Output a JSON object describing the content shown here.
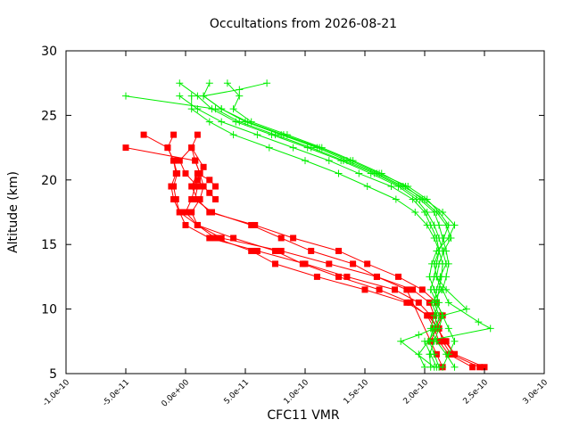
{
  "chart_data": {
    "type": "line",
    "title": "Occultations from 2026-08-21",
    "xlabel": "CFC11 VMR",
    "ylabel": "Altitude (km)",
    "xlim": [
      -1e-10,
      3e-10
    ],
    "ylim": [
      5,
      30
    ],
    "x_ticks": [
      "-1.0e-10",
      "-5.0e-11",
      "0.0e+00",
      "5.0e-11",
      "1.0e-10",
      "1.5e-10",
      "2.0e-10",
      "2.5e-10",
      "3.0e-10"
    ],
    "x_tick_values": [
      -1e-10,
      -5e-11,
      0,
      5e-11,
      1e-10,
      1.5e-10,
      2e-10,
      2.5e-10,
      3e-10
    ],
    "y_ticks": [
      "5",
      "10",
      "15",
      "20",
      "25",
      "30"
    ],
    "y_tick_values": [
      5,
      10,
      15,
      20,
      25,
      30
    ],
    "grid": false,
    "legend": "none",
    "series": [
      {
        "color": "#ff0000",
        "marker": "square",
        "profiles": [
          {
            "x": [
              2.46e-10,
              2.22e-10,
              2.15e-10,
              2.12e-10,
              2.08e-10,
              2.04e-10,
              1.9e-10,
              1.6e-10,
              1.2e-10,
              8e-11,
              3e-11,
              1e-11,
              -5e-12,
              -8e-12,
              -1e-11,
              -7e-12,
              -1e-11,
              -1.5e-11,
              -1e-11
            ],
            "y": [
              5.5,
              6.5,
              7.5,
              8.5,
              9.5,
              10.5,
              11.5,
              12.5,
              13.5,
              14.5,
              15.5,
              16.5,
              17.5,
              18.5,
              19.5,
              20.5,
              21.5,
              22.5,
              23.5
            ]
          },
          {
            "x": [
              2.5e-10,
              2.25e-10,
              2.18e-10,
              2.1e-10,
              2.05e-10,
              1.95e-10,
              1.75e-10,
              1.35e-10,
              1e-10,
              6e-11,
              2e-11,
              0,
              -5e-12,
              -1e-11,
              -1.2e-11,
              -8e-12,
              -1e-11,
              -1.5e-11,
              -3.5e-11
            ],
            "y": [
              5.5,
              6.5,
              7.5,
              8.5,
              9.5,
              10.5,
              11.5,
              12.5,
              13.5,
              14.5,
              15.5,
              16.5,
              17.5,
              18.5,
              19.5,
              20.5,
              21.5,
              22.5,
              23.5
            ]
          },
          {
            "x": [
              2.4e-10,
              2.2e-10,
              2.12e-10,
              2.08e-10,
              2.02e-10,
              1.88e-10,
              1.62e-10,
              1.28e-10,
              9.8e-11,
              7.5e-11,
              4e-11,
              1e-11,
              0,
              5e-12,
              8e-12,
              1.2e-11,
              8e-12,
              5e-12,
              1e-11
            ],
            "y": [
              5.5,
              6.5,
              7.5,
              8.5,
              9.5,
              10.5,
              11.5,
              12.5,
              13.5,
              14.5,
              15.5,
              16.5,
              17.5,
              18.5,
              19.5,
              20.5,
              21.5,
              22.5,
              23.5
            ]
          },
          {
            "x": [
              2.25e-10,
              2.17e-10,
              2.11e-10,
              2.03e-10,
              1.85e-10,
              1.5e-10,
              1.1e-10,
              7.5e-11,
              5.5e-11,
              2.5e-11,
              1e-11,
              5e-12,
              1.2e-11,
              1.5e-11,
              1.2e-11,
              8e-12,
              -5e-11
            ],
            "y": [
              6.5,
              7.5,
              8.5,
              9.5,
              10.5,
              11.5,
              12.5,
              13.5,
              14.5,
              15.5,
              16.5,
              17.5,
              18.5,
              19.5,
              20.5,
              21.5,
              22.5
            ]
          },
          {
            "x": [
              2.05e-10,
              2.1e-10,
              2.15e-10,
              2.1e-10,
              1.98e-10,
              1.78e-10,
              1.52e-10,
              1.28e-10,
              9e-11,
              5.8e-11,
              2e-11,
              1e-11,
              5e-12,
              1e-11,
              2e-11,
              2.5e-11
            ],
            "y": [
              7.5,
              8.5,
              9.5,
              10.5,
              11.5,
              12.5,
              13.5,
              14.5,
              15.5,
              16.5,
              17.5,
              18.5,
              19.5,
              20.5,
              20.0,
              19.5
            ]
          },
          {
            "x": [
              2.15e-10,
              2.1e-10,
              1.85e-10,
              1.6e-10,
              1.4e-10,
              1.05e-10,
              8e-11,
              5.5e-11,
              2.2e-11,
              8e-12,
              1e-11,
              0,
              -5e-12,
              5e-12,
              1.5e-11,
              1e-11,
              2e-11,
              2.5e-11
            ],
            "y": [
              5.5,
              6.5,
              11.5,
              12.5,
              13.5,
              14.5,
              15.5,
              16.5,
              17.5,
              18.5,
              19.5,
              20.5,
              21.5,
              22.5,
              21.0,
              20.0,
              19.0,
              18.5
            ]
          }
        ]
      },
      {
        "color": "#00ee00",
        "marker": "plus",
        "profiles": [
          {
            "x": [
              2.05e-10,
              2.04e-10,
              2.08e-10,
              2.12e-10,
              2.15e-10,
              2.1e-10,
              2.05e-10,
              2.08e-10,
              2.1e-10,
              2.12e-10,
              2.1e-10,
              2.05e-10,
              2e-10,
              1.9e-10,
              1.72e-10,
              1.45e-10,
              1.2e-10,
              9e-11,
              6e-11,
              3e-11,
              1e-11,
              -5e-12
            ],
            "y": [
              5.5,
              6.5,
              7.5,
              8.5,
              9.5,
              10.5,
              11.5,
              12.5,
              13.5,
              14.5,
              15.5,
              16.5,
              17.5,
              18.5,
              19.5,
              20.5,
              21.5,
              22.5,
              23.5,
              24.5,
              25.5,
              26.5
            ]
          },
          {
            "x": [
              2.15e-10,
              2.2e-10,
              2.25e-10,
              2.2e-10,
              2.15e-10,
              2.1e-10,
              2.12e-10,
              2.14e-10,
              2.15e-10,
              2.12e-10,
              2.08e-10,
              2.02e-10,
              1.92e-10,
              1.76e-10,
              1.52e-10,
              1.28e-10,
              1e-10,
              7e-11,
              4e-11,
              2e-11,
              5e-12,
              5e-12
            ],
            "y": [
              5.5,
              6.5,
              7.5,
              8.5,
              9.5,
              10.5,
              11.5,
              12.5,
              13.5,
              14.5,
              15.5,
              16.5,
              17.5,
              18.5,
              19.5,
              20.5,
              21.5,
              22.5,
              23.5,
              24.5,
              25.5,
              26.5
            ]
          },
          {
            "x": [
              2.1e-10,
              2.05e-10,
              2e-10,
              2.55e-10,
              2.45e-10,
              2.2e-10,
              2.15e-10,
              2.18e-10,
              2.2e-10,
              2.18e-10,
              2.15e-10,
              2.12e-10,
              2.08e-10,
              1.96e-10,
              1.8e-10,
              1.58e-10,
              1.32e-10,
              1.05e-10,
              7.5e-11,
              4.5e-11,
              2.5e-11,
              -5e-11
            ],
            "y": [
              5.5,
              6.5,
              7.5,
              8.5,
              9.0,
              10.5,
              11.5,
              12.5,
              13.5,
              14.5,
              15.5,
              16.5,
              17.5,
              18.5,
              19.5,
              20.5,
              21.5,
              22.5,
              23.5,
              24.5,
              25.5,
              26.5
            ]
          },
          {
            "x": [
              2.25e-10,
              2.18e-10,
              2.1e-10,
              2.05e-10,
              2.08e-10,
              2.12e-10,
              2.08e-10,
              2.04e-10,
              2.06e-10,
              2.1e-10,
              2.2e-10,
              2.25e-10,
              2.15e-10,
              2e-10,
              1.82e-10,
              1.6e-10,
              1.35e-10,
              1.1e-10,
              8e-11,
              5e-11,
              3e-11,
              1.5e-11,
              2e-11
            ],
            "y": [
              5.5,
              6.5,
              7.5,
              8.5,
              9.5,
              10.5,
              11.5,
              12.5,
              13.5,
              14.5,
              15.5,
              16.5,
              17.5,
              18.5,
              19.5,
              20.5,
              21.5,
              22.5,
              23.5,
              24.5,
              25.5,
              26.5,
              27.5
            ]
          },
          {
            "x": [
              2e-10,
              1.95e-10,
              2.03e-10,
              2.1e-10,
              2.12e-10,
              2.08e-10,
              2.1e-10,
              2.13e-10,
              2.18e-10,
              2.15e-10,
              2.12e-10,
              2.08e-10,
              2.02e-10,
              1.93e-10,
              1.78e-10,
              1.55e-10,
              1.3e-10,
              1.02e-10,
              7.2e-11,
              4.2e-11,
              2.2e-11,
              1e-11,
              -5e-12
            ],
            "y": [
              5.5,
              6.5,
              7.5,
              8.5,
              9.5,
              10.5,
              11.5,
              12.5,
              13.5,
              14.5,
              15.5,
              16.5,
              17.5,
              18.5,
              19.5,
              20.5,
              21.5,
              22.5,
              23.5,
              24.5,
              25.5,
              26.5,
              27.5
            ]
          },
          {
            "x": [
              2.12e-10,
              2.08e-10,
              2.04e-10,
              2.07e-10,
              2.15e-10,
              2.35e-10,
              2.18e-10,
              2.1e-10,
              2.12e-10,
              2.16e-10,
              2.22e-10,
              2.18e-10,
              2.1e-10,
              1.98e-10,
              1.84e-10,
              1.64e-10,
              1.4e-10,
              1.14e-10,
              8.5e-11,
              5.5e-11,
              4e-11,
              4.5e-11,
              3.5e-11
            ],
            "y": [
              5.5,
              6.5,
              7.5,
              8.5,
              9.5,
              10.0,
              11.5,
              12.5,
              13.5,
              14.5,
              15.5,
              16.5,
              17.5,
              18.5,
              19.5,
              20.5,
              21.5,
              22.5,
              23.5,
              24.5,
              25.5,
              26.5,
              27.5
            ]
          },
          {
            "x": [
              2.08e-10,
              1.8e-10,
              1.95e-10,
              2.08e-10,
              2.1e-10,
              2.06e-10,
              2.14e-10,
              2.1e-10,
              2.08e-10,
              2.12e-10,
              2.16e-10,
              2.2e-10,
              2.12e-10,
              2.02e-10,
              1.86e-10,
              1.62e-10,
              1.38e-10,
              1.12e-10,
              8.2e-11,
              5.2e-11,
              3e-11,
              1.5e-11,
              4.5e-11,
              6.8e-11
            ],
            "y": [
              5.5,
              7.5,
              8.0,
              8.5,
              9.5,
              10.5,
              11.5,
              12.5,
              13.5,
              14.5,
              15.5,
              16.5,
              17.5,
              18.5,
              19.5,
              20.5,
              21.5,
              22.5,
              23.5,
              24.5,
              25.5,
              26.5,
              27.0,
              27.5
            ]
          }
        ]
      }
    ]
  }
}
